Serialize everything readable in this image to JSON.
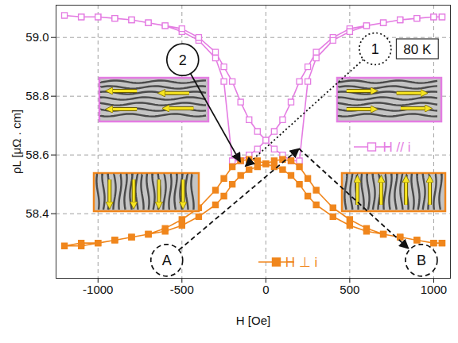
{
  "chart_data": {
    "type": "line",
    "x_label": "H [Oe]",
    "y_label": "ρL [μΩ . cm]",
    "xlim": [
      -1250,
      1100
    ],
    "ylim": [
      58.18,
      59.11
    ],
    "xticks": [
      -1000,
      -500,
      0,
      500,
      1000
    ],
    "yticks": [
      58.4,
      58.6,
      58.8,
      {
        "value": 59,
        "label": "59.0"
      }
    ],
    "grid": true,
    "legend": "inline",
    "series": [
      {
        "name": "H // i",
        "color": "#e47ce2",
        "marker": "square_open",
        "line_style": "solid",
        "x": [
          1050,
          1000,
          900,
          800,
          700,
          600,
          500,
          400,
          300,
          250,
          200,
          150,
          100,
          50,
          0,
          -50,
          -100,
          -150,
          -200,
          -250,
          -300,
          -400,
          -500,
          -600,
          -700,
          -800,
          -900,
          -1000,
          -1100,
          -1200,
          -1100,
          -1000,
          -900,
          -800,
          -700,
          -600,
          -500,
          -400,
          -300,
          -250,
          -200,
          -150,
          -100,
          -50,
          0,
          50,
          100,
          150,
          200,
          250,
          300,
          400,
          500,
          600,
          700,
          800,
          900,
          1000,
          1050
        ],
        "values": [
          59.07,
          59.07,
          59.065,
          59.06,
          59.05,
          59.04,
          59.03,
          59.0,
          58.95,
          58.9,
          58.85,
          58.78,
          58.72,
          58.68,
          58.65,
          58.62,
          58.6,
          58.58,
          58.58,
          58.85,
          58.93,
          58.99,
          59.02,
          59.04,
          59.05,
          59.06,
          59.065,
          59.07,
          59.07,
          59.075,
          59.07,
          59.07,
          59.065,
          59.06,
          59.05,
          59.04,
          59.03,
          59.0,
          58.95,
          58.9,
          58.85,
          58.78,
          58.72,
          58.68,
          58.65,
          58.62,
          58.6,
          58.58,
          58.58,
          58.85,
          58.93,
          58.99,
          59.02,
          59.04,
          59.05,
          59.06,
          59.065,
          59.07,
          59.07
        ]
      },
      {
        "name": "H ⊥ i",
        "color": "#f0861c",
        "marker": "square",
        "line_style": "solid",
        "x": [
          1050,
          1000,
          900,
          800,
          700,
          600,
          500,
          400,
          300,
          250,
          200,
          150,
          100,
          50,
          0,
          -50,
          -100,
          -150,
          -200,
          -250,
          -300,
          -400,
          -500,
          -600,
          -700,
          -800,
          -900,
          -1000,
          -1100,
          -1200,
          -1100,
          -1000,
          -900,
          -800,
          -700,
          -600,
          -500,
          -400,
          -300,
          -250,
          -200,
          -150,
          -100,
          -50,
          0,
          50,
          100,
          150,
          200,
          250,
          300,
          400,
          500,
          600,
          700,
          800,
          900,
          1000,
          1050
        ],
        "values": [
          58.3,
          58.3,
          58.31,
          58.32,
          58.33,
          58.35,
          58.38,
          58.42,
          58.48,
          58.52,
          58.56,
          58.58,
          58.585,
          58.58,
          58.57,
          58.56,
          58.55,
          58.53,
          58.5,
          58.46,
          58.43,
          58.39,
          58.36,
          58.34,
          58.33,
          58.32,
          58.31,
          58.3,
          58.29,
          58.29,
          58.3,
          58.3,
          58.31,
          58.32,
          58.33,
          58.35,
          58.38,
          58.42,
          58.48,
          58.52,
          58.56,
          58.58,
          58.585,
          58.58,
          58.57,
          58.56,
          58.55,
          58.53,
          58.5,
          58.46,
          58.43,
          58.39,
          58.36,
          58.34,
          58.33,
          58.32,
          58.31,
          58.3,
          58.3
        ]
      }
    ],
    "annotations": [
      {
        "text": "80 K",
        "shape": "box",
        "x": 905,
        "y": 58.96
      },
      {
        "text": "1",
        "shape": "circle",
        "line_style": "dotted",
        "x": 654,
        "y": 58.96,
        "arrow_to": [
          -120,
          58.56
        ]
      },
      {
        "text": "2",
        "shape": "circle",
        "line_style": "solid",
        "x": -493,
        "y": 58.923,
        "arrow_to": [
          -150,
          58.575
        ]
      },
      {
        "text": "A",
        "shape": "circle",
        "line_style": "dashed",
        "x": -588,
        "y": 58.24,
        "arrow_to": [
          200,
          58.62
        ]
      },
      {
        "text": "B",
        "shape": "circle",
        "line_style": "dashed",
        "x": 929,
        "y": 58.24,
        "arrow_from": [
          200,
          58.62
        ]
      }
    ]
  }
}
